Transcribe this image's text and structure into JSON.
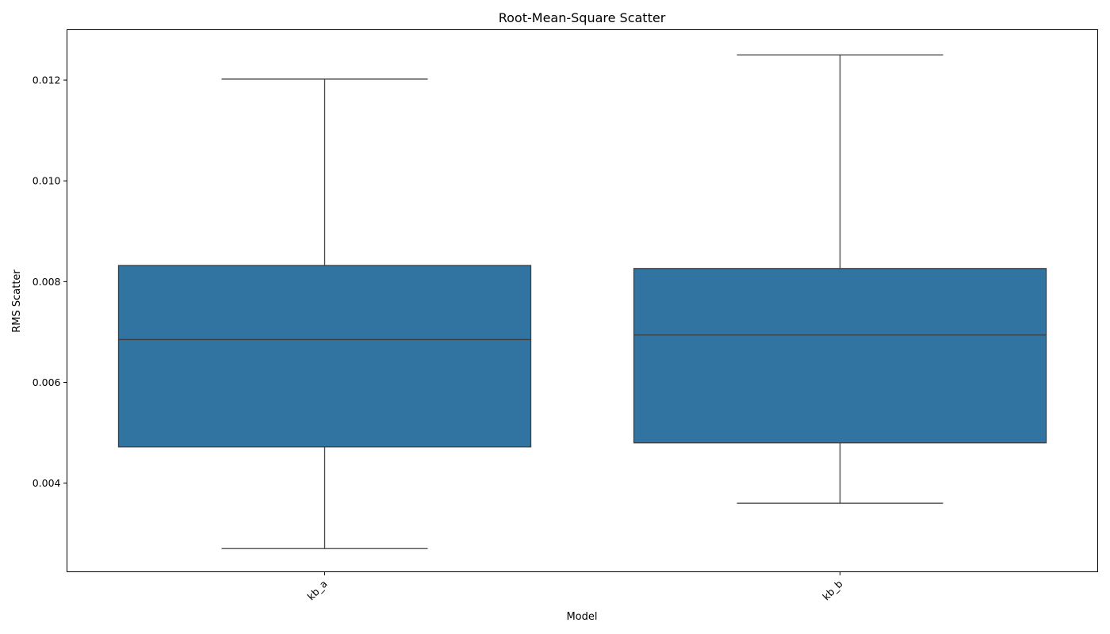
{
  "chart_data": {
    "type": "box",
    "title": "Root-Mean-Square Scatter",
    "xlabel": "Model",
    "ylabel": "RMS Scatter",
    "categories": [
      "kb_a",
      "kb_b"
    ],
    "boxes": [
      {
        "category": "kb_a",
        "whisker_low": 0.0027,
        "q1": 0.00472,
        "median": 0.00685,
        "q3": 0.00832,
        "whisker_high": 0.01202
      },
      {
        "category": "kb_b",
        "whisker_low": 0.0036,
        "q1": 0.0048,
        "median": 0.00694,
        "q3": 0.00826,
        "whisker_high": 0.0125
      }
    ],
    "yticks": [
      "0.004",
      "0.006",
      "0.008",
      "0.010",
      "0.012"
    ],
    "ylim": [
      0.00224,
      0.013
    ],
    "grid": false,
    "legend": "none",
    "box_color": "#3274a1",
    "line_color": "#3d3d3d"
  }
}
